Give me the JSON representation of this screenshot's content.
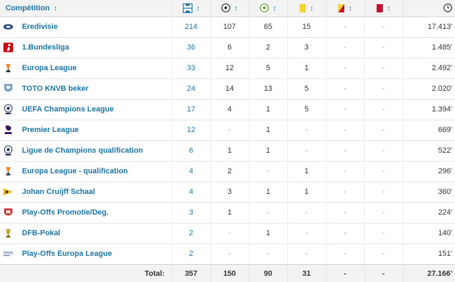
{
  "header": {
    "competition_label": "Compétition",
    "sort_glyph": "↕",
    "columns": [
      {
        "icon": "appearances-icon"
      },
      {
        "icon": "goals-icon"
      },
      {
        "icon": "assists-icon"
      },
      {
        "icon": "yellow-card-icon",
        "color": "#f5d13a"
      },
      {
        "icon": "second-yellow-card-icon",
        "color": "#f2a30f"
      },
      {
        "icon": "red-card-icon",
        "color": "#c8102e"
      },
      {
        "icon": "clock-icon"
      }
    ]
  },
  "rows": [
    {
      "competition": "Eredivisie",
      "logo": "eredivisie-logo",
      "apps": "214",
      "goals": "107",
      "assists": "65",
      "yellow": "15",
      "second_yellow": "-",
      "red": "-",
      "minutes": "17.413'"
    },
    {
      "competition": "1.Bundesliga",
      "logo": "bundesliga-logo",
      "apps": "36",
      "goals": "6",
      "assists": "2",
      "yellow": "3",
      "second_yellow": "-",
      "red": "-",
      "minutes": "1.485'"
    },
    {
      "competition": "Europa League",
      "logo": "europa-league-logo",
      "apps": "33",
      "goals": "12",
      "assists": "5",
      "yellow": "1",
      "second_yellow": "-",
      "red": "-",
      "minutes": "2.492'"
    },
    {
      "competition": "TOTO KNVB beker",
      "logo": "knvb-beker-logo",
      "apps": "24",
      "goals": "14",
      "assists": "13",
      "yellow": "5",
      "second_yellow": "-",
      "red": "-",
      "minutes": "2.020'"
    },
    {
      "competition": "UEFA Champions League",
      "logo": "champions-league-logo",
      "apps": "17",
      "goals": "4",
      "assists": "1",
      "yellow": "5",
      "second_yellow": "-",
      "red": "-",
      "minutes": "1.394'"
    },
    {
      "competition": "Premier League",
      "logo": "premier-league-logo",
      "apps": "12",
      "goals": "-",
      "assists": "1",
      "yellow": "-",
      "second_yellow": "-",
      "red": "-",
      "minutes": "669'"
    },
    {
      "competition": "Ligue de Champions qualification",
      "logo": "champions-league-logo",
      "apps": "6",
      "goals": "1",
      "assists": "1",
      "yellow": "-",
      "second_yellow": "-",
      "red": "-",
      "minutes": "522'"
    },
    {
      "competition": "Europa League - qualification",
      "logo": "europa-league-logo",
      "apps": "4",
      "goals": "2",
      "assists": "-",
      "yellow": "1",
      "second_yellow": "-",
      "red": "-",
      "minutes": "296'"
    },
    {
      "competition": "Johan Cruijff Schaal",
      "logo": "johan-cruijff-schaal-logo",
      "apps": "4",
      "goals": "3",
      "assists": "1",
      "yellow": "1",
      "second_yellow": "-",
      "red": "-",
      "minutes": "360'"
    },
    {
      "competition": "Play-Offs Promotie/Deg.",
      "logo": "play-offs-logo",
      "apps": "3",
      "goals": "1",
      "assists": "-",
      "yellow": "-",
      "second_yellow": "-",
      "red": "-",
      "minutes": "224'"
    },
    {
      "competition": "DFB-Pokal",
      "logo": "dfb-pokal-logo",
      "apps": "2",
      "goals": "-",
      "assists": "1",
      "yellow": "-",
      "second_yellow": "-",
      "red": "-",
      "minutes": "140'"
    },
    {
      "competition": "Play-Offs Europa League",
      "logo": "play-offs-europa-league-logo",
      "apps": "2",
      "goals": "-",
      "assists": "-",
      "yellow": "-",
      "second_yellow": "-",
      "red": "-",
      "minutes": "151'"
    }
  ],
  "totals": {
    "label": "Total:",
    "apps": "357",
    "goals": "150",
    "assists": "90",
    "yellow": "31",
    "second_yellow": "-",
    "red": "-",
    "minutes": "27.166'"
  },
  "colors": {
    "link": "#1d75a3",
    "header_bg": "#f3f3f3"
  }
}
